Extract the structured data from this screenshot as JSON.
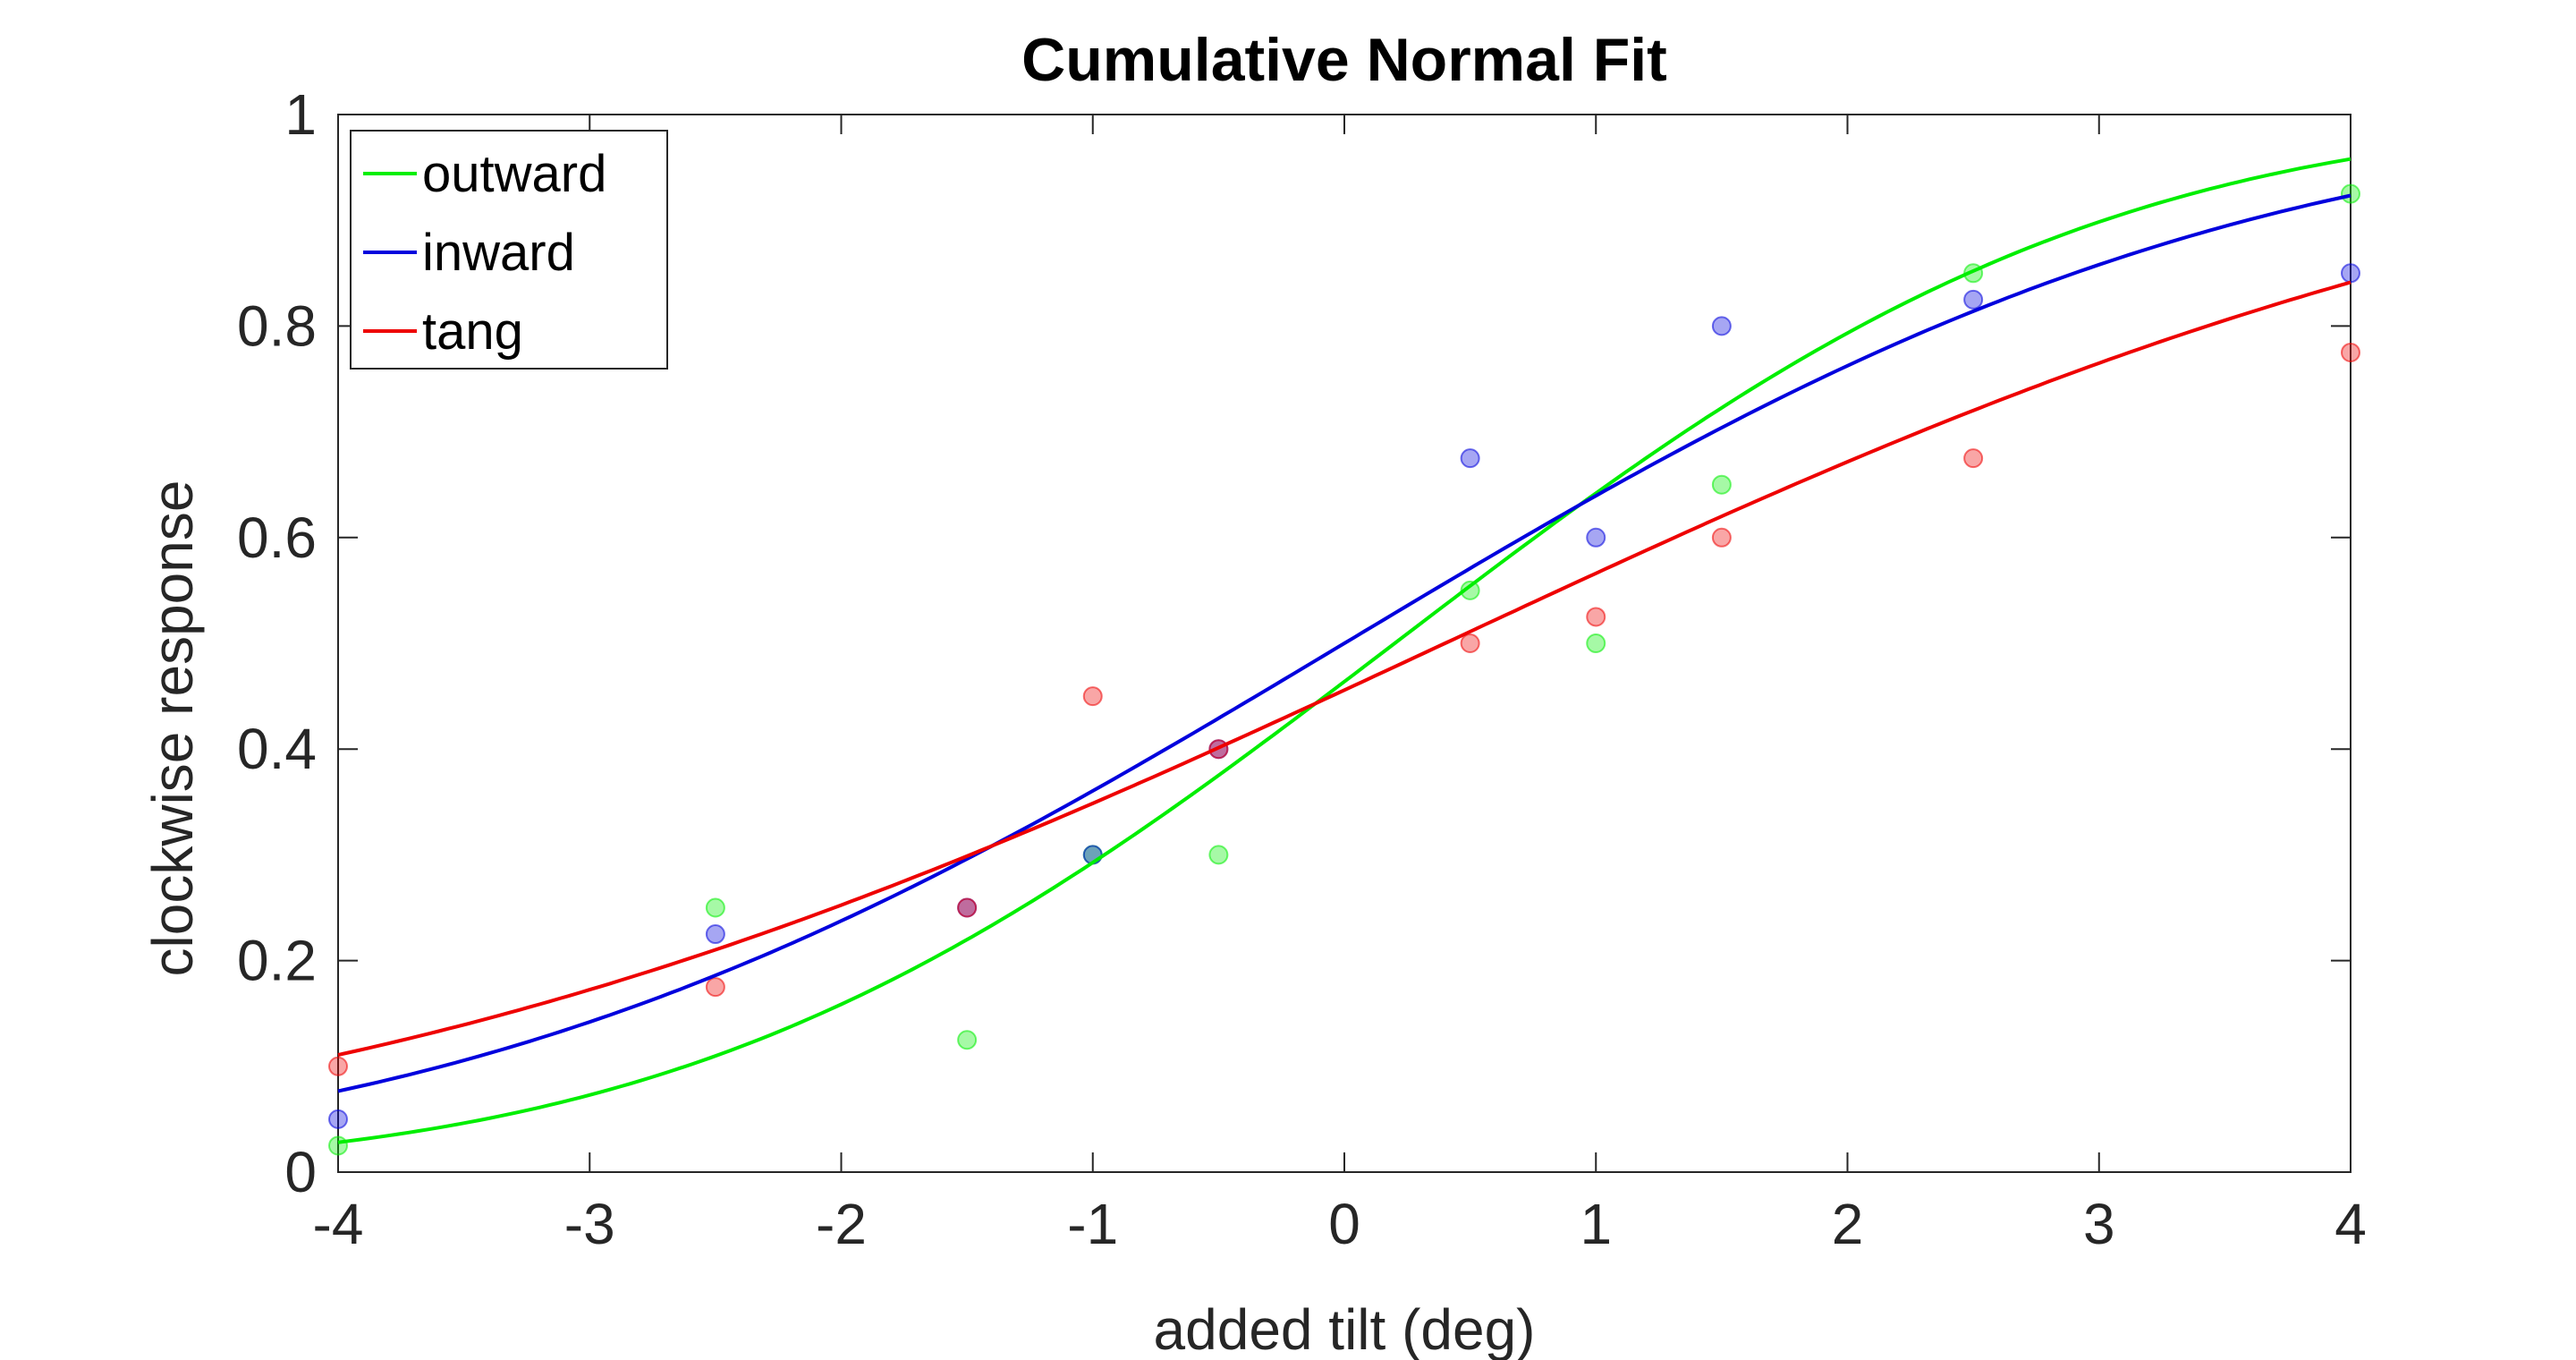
{
  "chart_data": {
    "type": "line",
    "title": "Cumulative Normal Fit",
    "xlabel": "added tilt (deg)",
    "ylabel": "clockwise response",
    "xlim": [
      -4,
      4
    ],
    "ylim": [
      0,
      1
    ],
    "xticks": [
      -4,
      -3,
      -2,
      -1,
      0,
      1,
      2,
      3,
      4
    ],
    "yticks": [
      0,
      0.2,
      0.4,
      0.6,
      0.8,
      1
    ],
    "xtick_labels": [
      "-4",
      "-3",
      "-2",
      "-1",
      "0",
      "1",
      "2",
      "3",
      "4"
    ],
    "ytick_labels": [
      "0",
      "0.2",
      "0.4",
      "0.6",
      "0.8",
      "1"
    ],
    "grid": false,
    "box": true,
    "legend_position": "top-left",
    "series": [
      {
        "name": "outward",
        "color": "#00ee00",
        "fit": {
          "model": "cumulative normal",
          "mu": 0.2,
          "sigma": 2.2
        },
        "points": [
          [
            -4,
            0.025
          ],
          [
            -2.5,
            0.25
          ],
          [
            -1.5,
            0.125
          ],
          [
            -1,
            0.3
          ],
          [
            -0.5,
            0.3
          ],
          [
            0.5,
            0.55
          ],
          [
            1,
            0.5
          ],
          [
            1.5,
            0.65
          ],
          [
            2.5,
            0.85
          ],
          [
            4,
            0.925
          ]
        ]
      },
      {
        "name": "inward",
        "color": "#0000dd",
        "fit": {
          "model": "cumulative normal",
          "mu": 0.0,
          "sigma": 2.8
        },
        "points": [
          [
            -4,
            0.05
          ],
          [
            -2.5,
            0.225
          ],
          [
            -1.5,
            0.25
          ],
          [
            -1,
            0.3
          ],
          [
            -0.5,
            0.4
          ],
          [
            0.5,
            0.675
          ],
          [
            1,
            0.6
          ],
          [
            1.5,
            0.8
          ],
          [
            2.5,
            0.825
          ],
          [
            4,
            0.85
          ]
        ]
      },
      {
        "name": "tang",
        "color": "#ee0000",
        "fit": {
          "model": "cumulative normal",
          "mu": 0.4,
          "sigma": 3.6
        },
        "points": [
          [
            -4,
            0.1
          ],
          [
            -2.5,
            0.175
          ],
          [
            -1.5,
            0.25
          ],
          [
            -1,
            0.45
          ],
          [
            -0.5,
            0.4
          ],
          [
            0.5,
            0.5
          ],
          [
            1,
            0.525
          ],
          [
            1.5,
            0.6
          ],
          [
            2.5,
            0.675
          ],
          [
            4,
            0.775
          ]
        ]
      }
    ]
  }
}
